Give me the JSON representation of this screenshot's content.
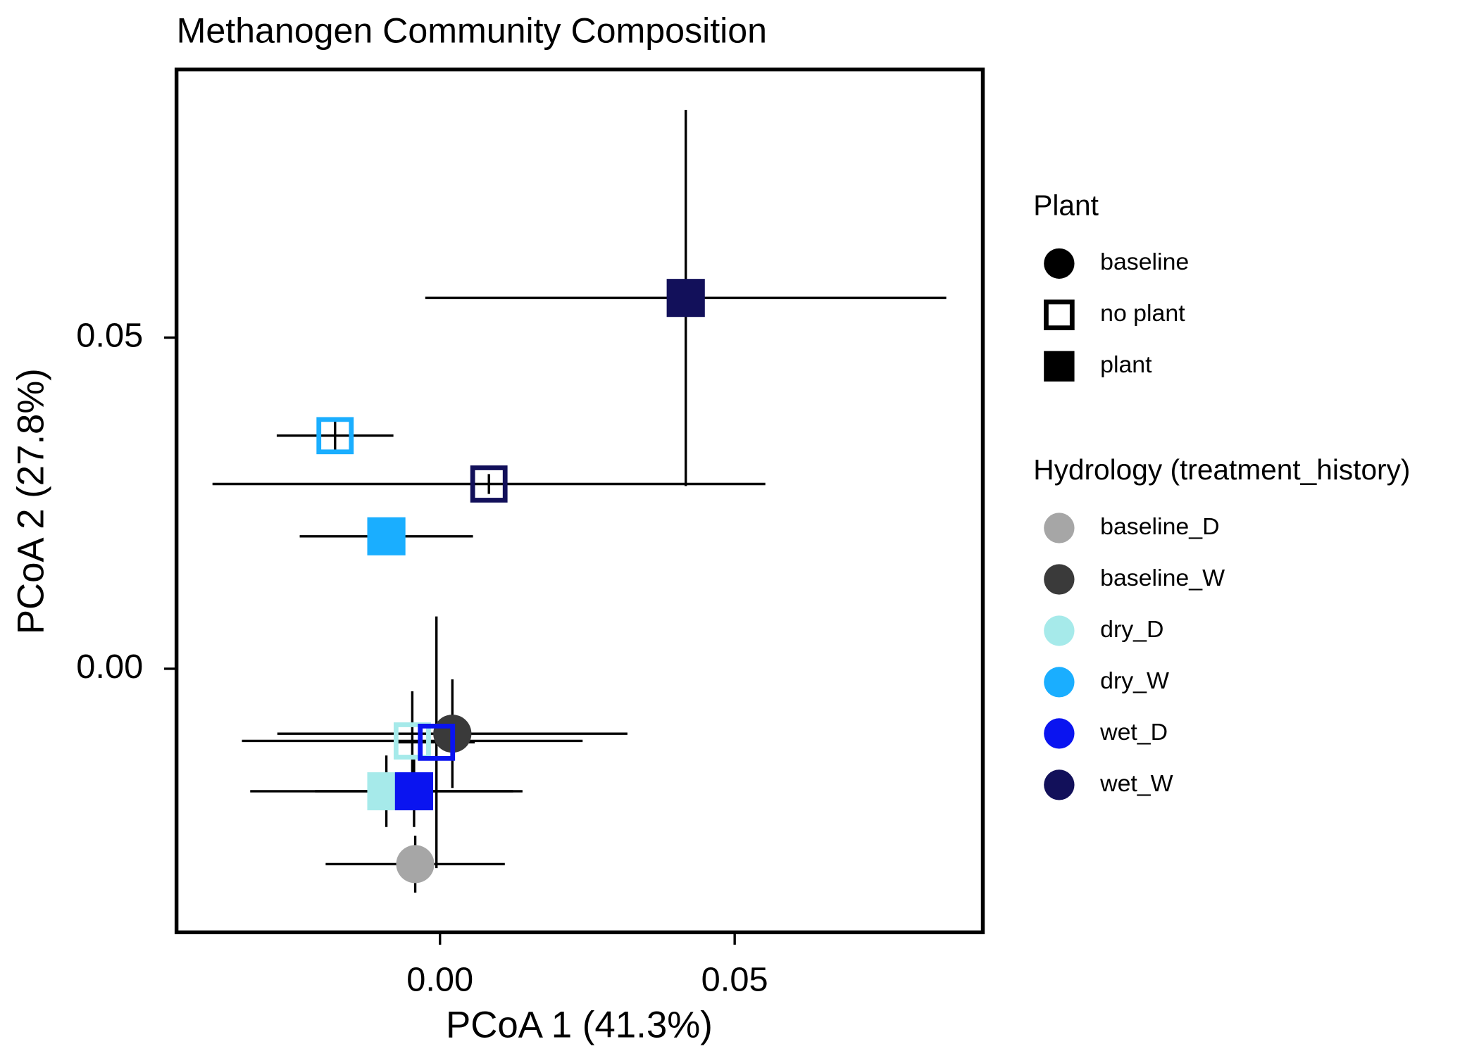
{
  "chart_data": {
    "type": "scatter",
    "title": "Methanogen Community Composition",
    "xlabel": "PCoA 1 (41.3%)",
    "ylabel": "PCoA 2 (27.8%)",
    "xlim": [
      -0.0447,
      0.0921
    ],
    "ylim": [
      -0.0398,
      0.0905
    ],
    "xticks": [
      {
        "value": 0,
        "label": "0.00"
      },
      {
        "value": 0.05,
        "label": "0.05"
      }
    ],
    "yticks": [
      {
        "value": 0,
        "label": "0.00"
      },
      {
        "value": 0.05,
        "label": "0.05"
      }
    ],
    "plant_legend": {
      "title": "Plant",
      "entries": [
        {
          "name": "baseline",
          "shape": "circle"
        },
        {
          "name": "no plant",
          "shape": "open-square"
        },
        {
          "name": "plant",
          "shape": "square"
        }
      ]
    },
    "hydrology_legend": {
      "title": "Hydrology (treatment_history)",
      "entries": [
        {
          "name": "baseline_D",
          "color": "#a6a6a6"
        },
        {
          "name": "baseline_W",
          "color": "#3a3a3a"
        },
        {
          "name": "dry_D",
          "color": "#a6eaea"
        },
        {
          "name": "dry_W",
          "color": "#1aaeff"
        },
        {
          "name": "wet_D",
          "color": "#0a14f0"
        },
        {
          "name": "wet_W",
          "color": "#12105a"
        }
      ]
    },
    "points": [
      {
        "hydrology": "wet_W",
        "plant": "plant",
        "x": 0.0417,
        "y": 0.056,
        "xerr": 0.0442,
        "yerr": 0.0284
      },
      {
        "hydrology": "dry_W",
        "plant": "no plant",
        "x": -0.0178,
        "y": 0.0352,
        "xerr": 0.0099,
        "yerr": 0.0026
      },
      {
        "hydrology": "wet_W",
        "plant": "no plant",
        "x": 0.0083,
        "y": 0.0279,
        "xerr": 0.0469,
        "yerr": 0.0015
      },
      {
        "hydrology": "dry_W",
        "plant": "plant",
        "x": -0.0091,
        "y": 0.02,
        "xerr": 0.0147,
        "yerr": 0.002
      },
      {
        "hydrology": "baseline_W",
        "plant": "baseline",
        "x": 0.0021,
        "y": -0.0098,
        "xerr": 0.0297,
        "yerr": 0.0082
      },
      {
        "hydrology": "dry_D",
        "plant": "no plant",
        "x": -0.0047,
        "y": -0.0109,
        "xerr": 0.0289,
        "yerr": 0.0075
      },
      {
        "hydrology": "wet_D",
        "plant": "no plant",
        "x": -0.0006,
        "y": -0.0111,
        "xerr": 0.0065,
        "yerr": 0.019
      },
      {
        "hydrology": "dry_D",
        "plant": "plant",
        "x": -0.0091,
        "y": -0.0185,
        "xerr": 0.0231,
        "yerr": 0.0054
      },
      {
        "hydrology": "wet_D",
        "plant": "plant",
        "x": -0.0044,
        "y": -0.0185,
        "xerr": 0.0168,
        "yerr": 0.0054
      },
      {
        "hydrology": "baseline_D",
        "plant": "baseline",
        "x": -0.0042,
        "y": -0.0295,
        "xerr": 0.0152,
        "yerr": 0.0043
      }
    ]
  }
}
